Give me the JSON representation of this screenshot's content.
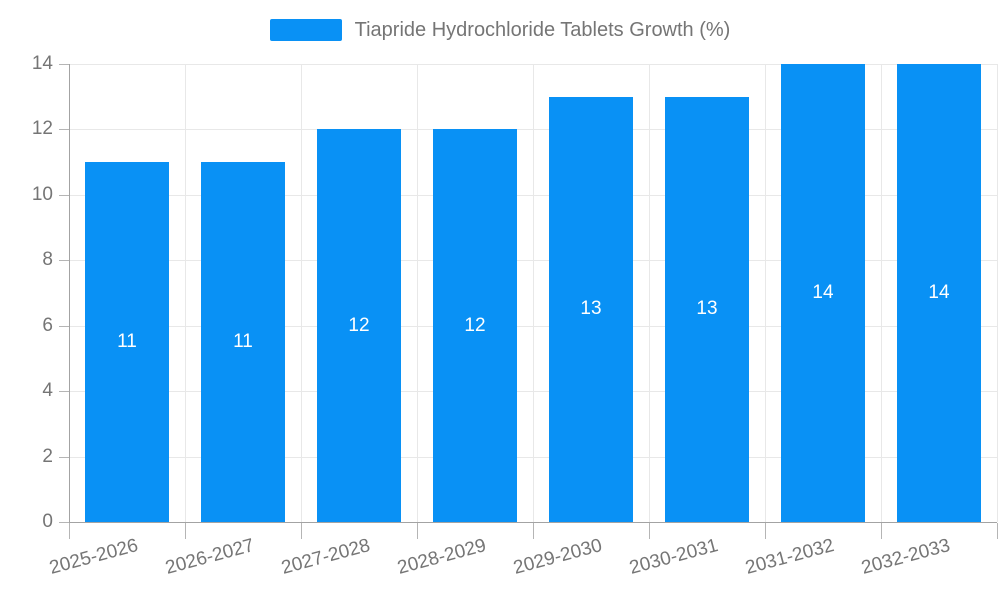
{
  "chart_data": {
    "type": "bar",
    "title": "Tiapride Hydrochloride Tablets Growth (%)",
    "xlabel": "",
    "ylabel": "",
    "categories": [
      "2025-2026",
      "2026-2027",
      "2027-2028",
      "2028-2029",
      "2029-2030",
      "2030-2031",
      "2031-2032",
      "2032-2033"
    ],
    "values": [
      11,
      11,
      12,
      12,
      13,
      13,
      14,
      14
    ],
    "value_labels": [
      "11",
      "11",
      "12",
      "12",
      "13",
      "13",
      "14",
      "14"
    ],
    "ylim": [
      0,
      14
    ],
    "yticks": [
      0,
      2,
      4,
      6,
      8,
      10,
      12,
      14
    ],
    "grid": true,
    "legend_position": "top-center",
    "legend_entries": [
      "Tiapride Hydrochloride Tablets Growth (%)"
    ],
    "x_label_rotation_deg": -15
  },
  "legend": {
    "label": "Tiapride Hydrochloride Tablets Growth (%)"
  },
  "colors": {
    "bar": "#0991F5",
    "bar_value_text": "#ffffff",
    "axis_label_text": "#757575",
    "legend_text": "#757575",
    "axis_line": "#a3a3a3",
    "tick_line": "#b5b5b5",
    "gridline": "#e8e8e8",
    "background": "#ffffff"
  }
}
